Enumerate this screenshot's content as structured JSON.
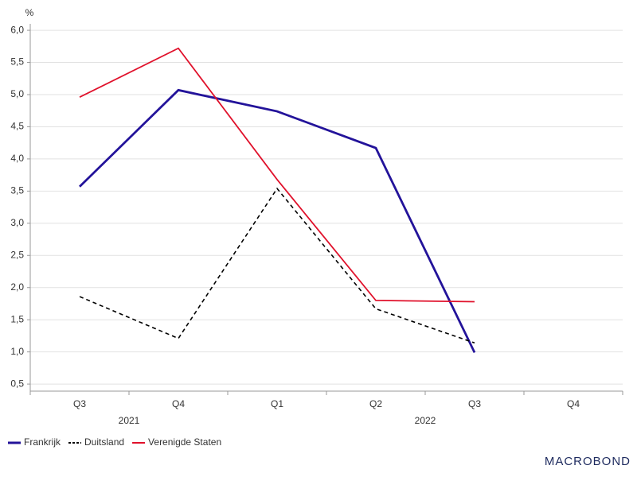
{
  "chart_data": {
    "type": "line",
    "y_label": "%",
    "categories": [
      "Q3",
      "Q4",
      "Q1",
      "Q2",
      "Q3",
      "Q4"
    ],
    "x_groups": [
      {
        "label": "2021",
        "first": 0,
        "last": 1
      },
      {
        "label": "2022",
        "first": 2,
        "last": 5
      }
    ],
    "series": [
      {
        "name": "Frankrijk",
        "color": "#23139a",
        "dash": false,
        "values": [
          3.57,
          5.07,
          4.74,
          4.17,
          0.99,
          null
        ]
      },
      {
        "name": "Duitsland",
        "color": "#000000",
        "dash": true,
        "values": [
          1.86,
          1.21,
          3.54,
          1.67,
          1.14,
          null
        ]
      },
      {
        "name": "Verenigde Staten",
        "color": "#e0112b",
        "dash": false,
        "values": [
          4.96,
          5.72,
          3.68,
          1.8,
          1.78,
          null
        ]
      }
    ],
    "ylim": [
      0.39,
      6.1
    ],
    "yticks": [
      {
        "value": 0.5,
        "label": "0,5"
      },
      {
        "value": 1,
        "label": "1,0"
      },
      {
        "value": 1.5,
        "label": "1,5"
      },
      {
        "value": 2,
        "label": "2,0"
      },
      {
        "value": 2.5,
        "label": "2,5"
      },
      {
        "value": 3,
        "label": "3,0"
      },
      {
        "value": 3.5,
        "label": "3,5"
      },
      {
        "value": 4,
        "label": "4,0"
      },
      {
        "value": 4.5,
        "label": "4,5"
      },
      {
        "value": 5,
        "label": "5,0"
      },
      {
        "value": 5.5,
        "label": "5,5"
      },
      {
        "value": 6,
        "label": "6,0"
      }
    ],
    "grid": true,
    "legend": "bottom-left",
    "brand": "MACROBOND"
  }
}
